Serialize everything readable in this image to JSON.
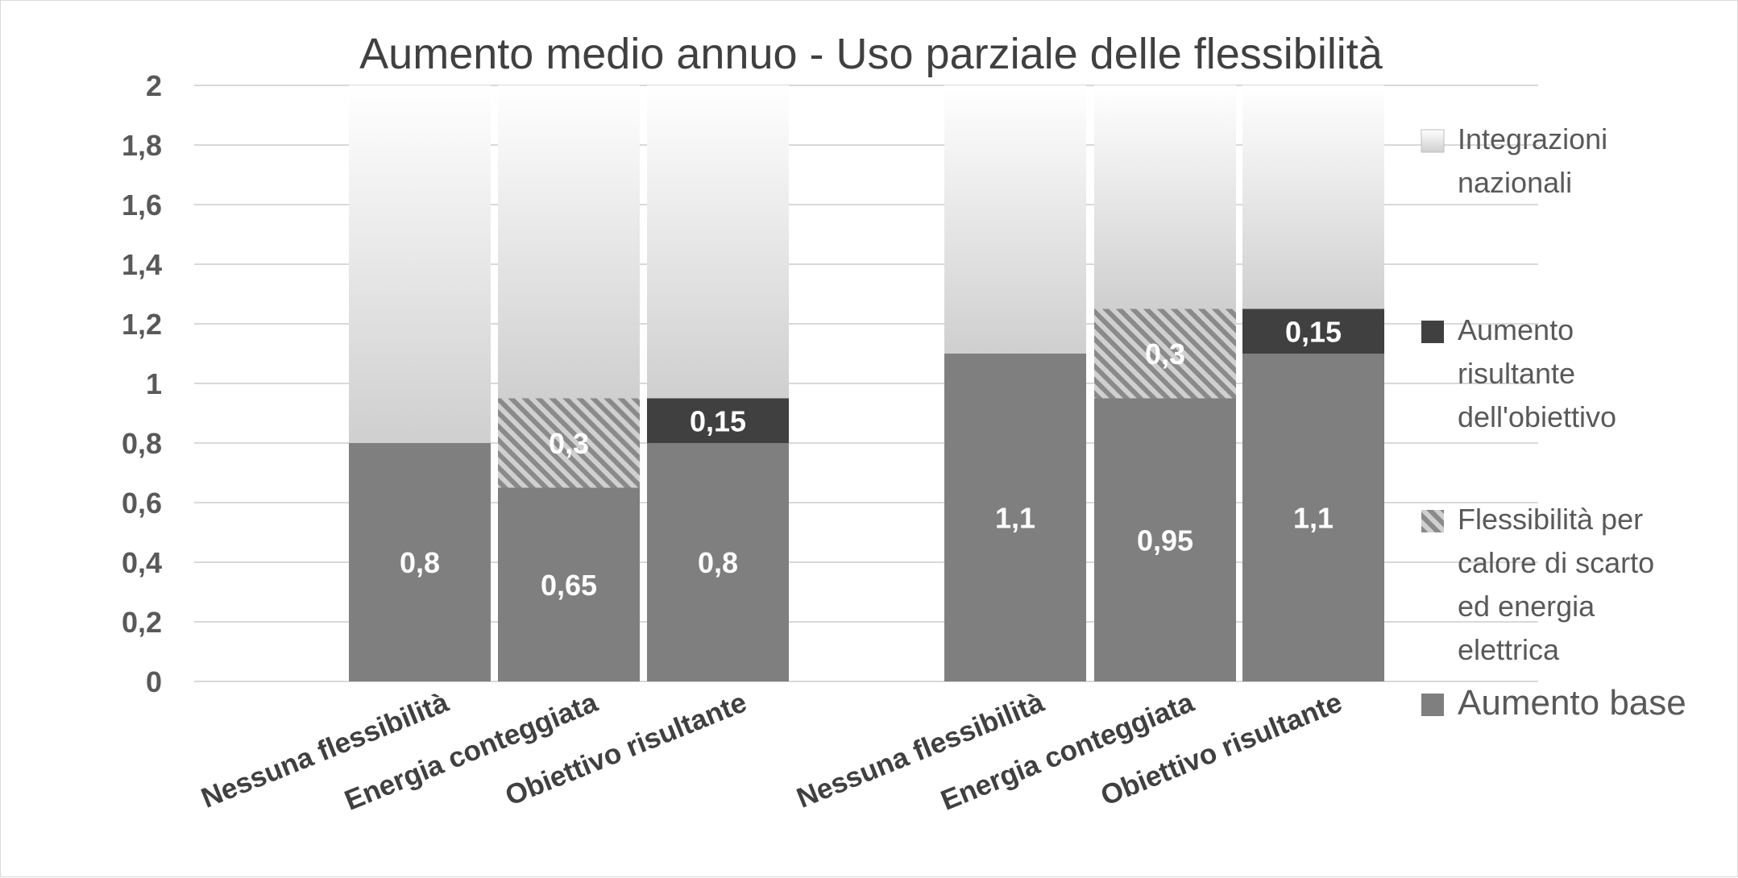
{
  "chart_data": {
    "type": "bar",
    "stacked": true,
    "title": "Aumento medio annuo - Uso parziale delle flessibilità",
    "categories": [
      "Nessuna flessibilità",
      "Energia conteggiata",
      "Obiettivo risultante",
      "Nessuna flessibilità",
      "Energia conteggiata",
      "Obiettivo risultante"
    ],
    "ylim": [
      0,
      2
    ],
    "yticks": [
      "0",
      "0,2",
      "0,4",
      "0,6",
      "0,8",
      "1",
      "1,2",
      "1,4",
      "1,6",
      "1,8",
      "2"
    ],
    "grid": true,
    "legend_position": "right",
    "series": [
      {
        "name": "Aumento base",
        "values": [
          0.8,
          0.65,
          0.8,
          1.1,
          0.95,
          1.1
        ],
        "labels": [
          "0,8",
          "0,65",
          "0,8",
          "1,1",
          "0,95",
          "1,1"
        ],
        "color": "#7f7f7f"
      },
      {
        "name": "Flessibilità per calore di scarto ed energia elettrica",
        "values": [
          0,
          0.3,
          0,
          0,
          0.3,
          0
        ],
        "labels": [
          "",
          "0,3",
          "",
          "",
          "0,3",
          ""
        ],
        "color": "#a6a6a6",
        "pattern": "hatch"
      },
      {
        "name": "Aumento risultante dell'obiettivo",
        "values": [
          0,
          0,
          0.15,
          0,
          0,
          0.15
        ],
        "labels": [
          "",
          "",
          "0,15",
          "",
          "",
          "0,15"
        ],
        "color": "#404040"
      },
      {
        "name": "Integrazioni nazionali",
        "values": [
          1.2,
          1.05,
          1.05,
          0.9,
          0.75,
          0.75
        ],
        "labels": [
          "",
          "",
          "",
          "",
          "",
          ""
        ],
        "color": "#d9d9d9",
        "gradient": true
      }
    ],
    "legend": [
      {
        "lines": [
          "Integrazioni",
          "nazionali"
        ],
        "series": 3
      },
      {
        "lines": [
          "Aumento",
          "risultante",
          "dell'obiettivo"
        ],
        "series": 2
      },
      {
        "lines": [
          "Flessibilità per",
          "calore di scarto",
          "ed energia",
          "elettrica"
        ],
        "series": 1
      },
      {
        "lines": [
          "Aumento base"
        ],
        "series": 0
      }
    ]
  }
}
